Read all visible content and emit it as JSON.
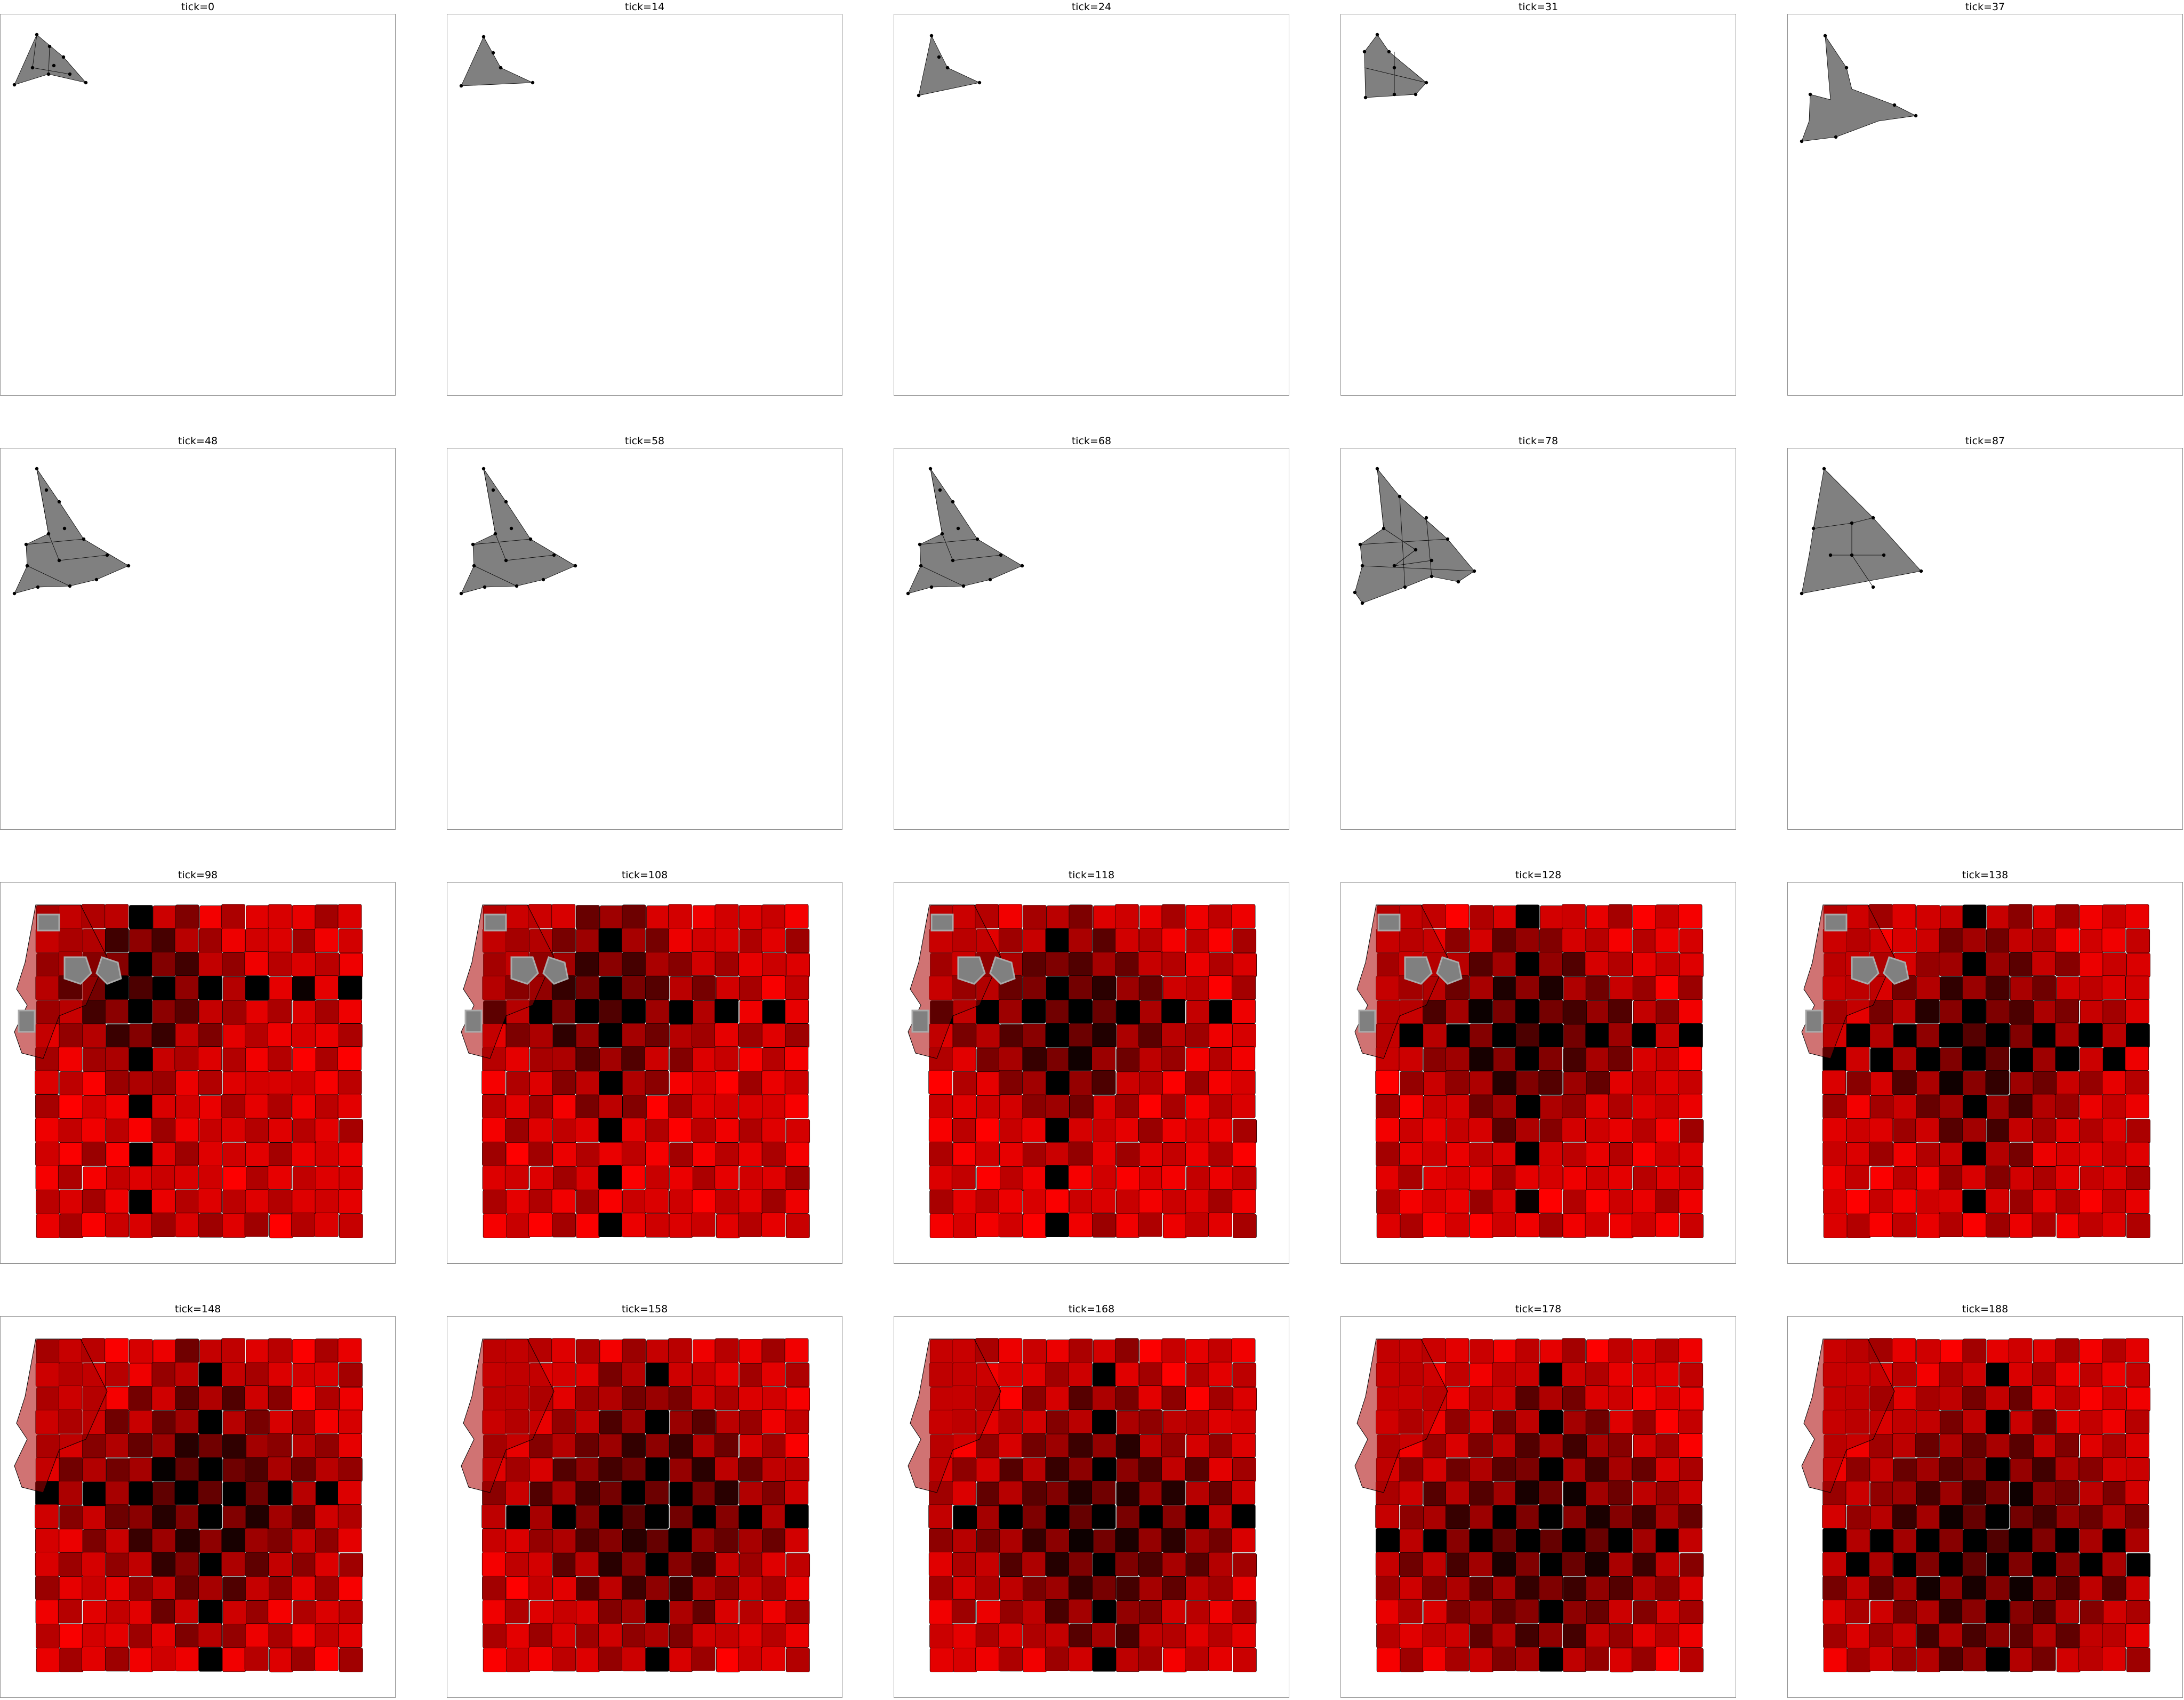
{
  "figure": {
    "panels": [
      {
        "title": "tick=0",
        "kind": "shape",
        "variant": "small-mesh"
      },
      {
        "title": "tick=14",
        "kind": "shape",
        "variant": "small-plain"
      },
      {
        "title": "tick=24",
        "kind": "shape",
        "variant": "small-plain-2"
      },
      {
        "title": "tick=31",
        "kind": "shape",
        "variant": "small-cells"
      },
      {
        "title": "tick=37",
        "kind": "shape",
        "variant": "two-lobe"
      },
      {
        "title": "tick=48",
        "kind": "shape",
        "variant": "medium-mesh"
      },
      {
        "title": "tick=58",
        "kind": "shape",
        "variant": "medium-mesh"
      },
      {
        "title": "tick=68",
        "kind": "shape",
        "variant": "medium-mesh"
      },
      {
        "title": "tick=78",
        "kind": "shape",
        "variant": "medium-dense"
      },
      {
        "title": "tick=87",
        "kind": "shape",
        "variant": "medium-cells"
      },
      {
        "title": "tick=98",
        "kind": "grid",
        "tick": 98
      },
      {
        "title": "tick=108",
        "kind": "grid",
        "tick": 108
      },
      {
        "title": "tick=118",
        "kind": "grid",
        "tick": 118
      },
      {
        "title": "tick=128",
        "kind": "grid",
        "tick": 128
      },
      {
        "title": "tick=138",
        "kind": "grid",
        "tick": 138
      },
      {
        "title": "tick=148",
        "kind": "grid",
        "tick": 148
      },
      {
        "title": "tick=158",
        "kind": "grid",
        "tick": 158
      },
      {
        "title": "tick=168",
        "kind": "grid",
        "tick": 168
      },
      {
        "title": "tick=178",
        "kind": "grid",
        "tick": 178
      },
      {
        "title": "tick=188",
        "kind": "grid",
        "tick": 188
      }
    ]
  },
  "colors": {
    "shape_fill": "#808080",
    "cell_base": "#ff0000",
    "cell_dark": "#000000",
    "outline": "#000000",
    "frame": "#8f8f8f",
    "highlight": "#aaaaaa"
  }
}
